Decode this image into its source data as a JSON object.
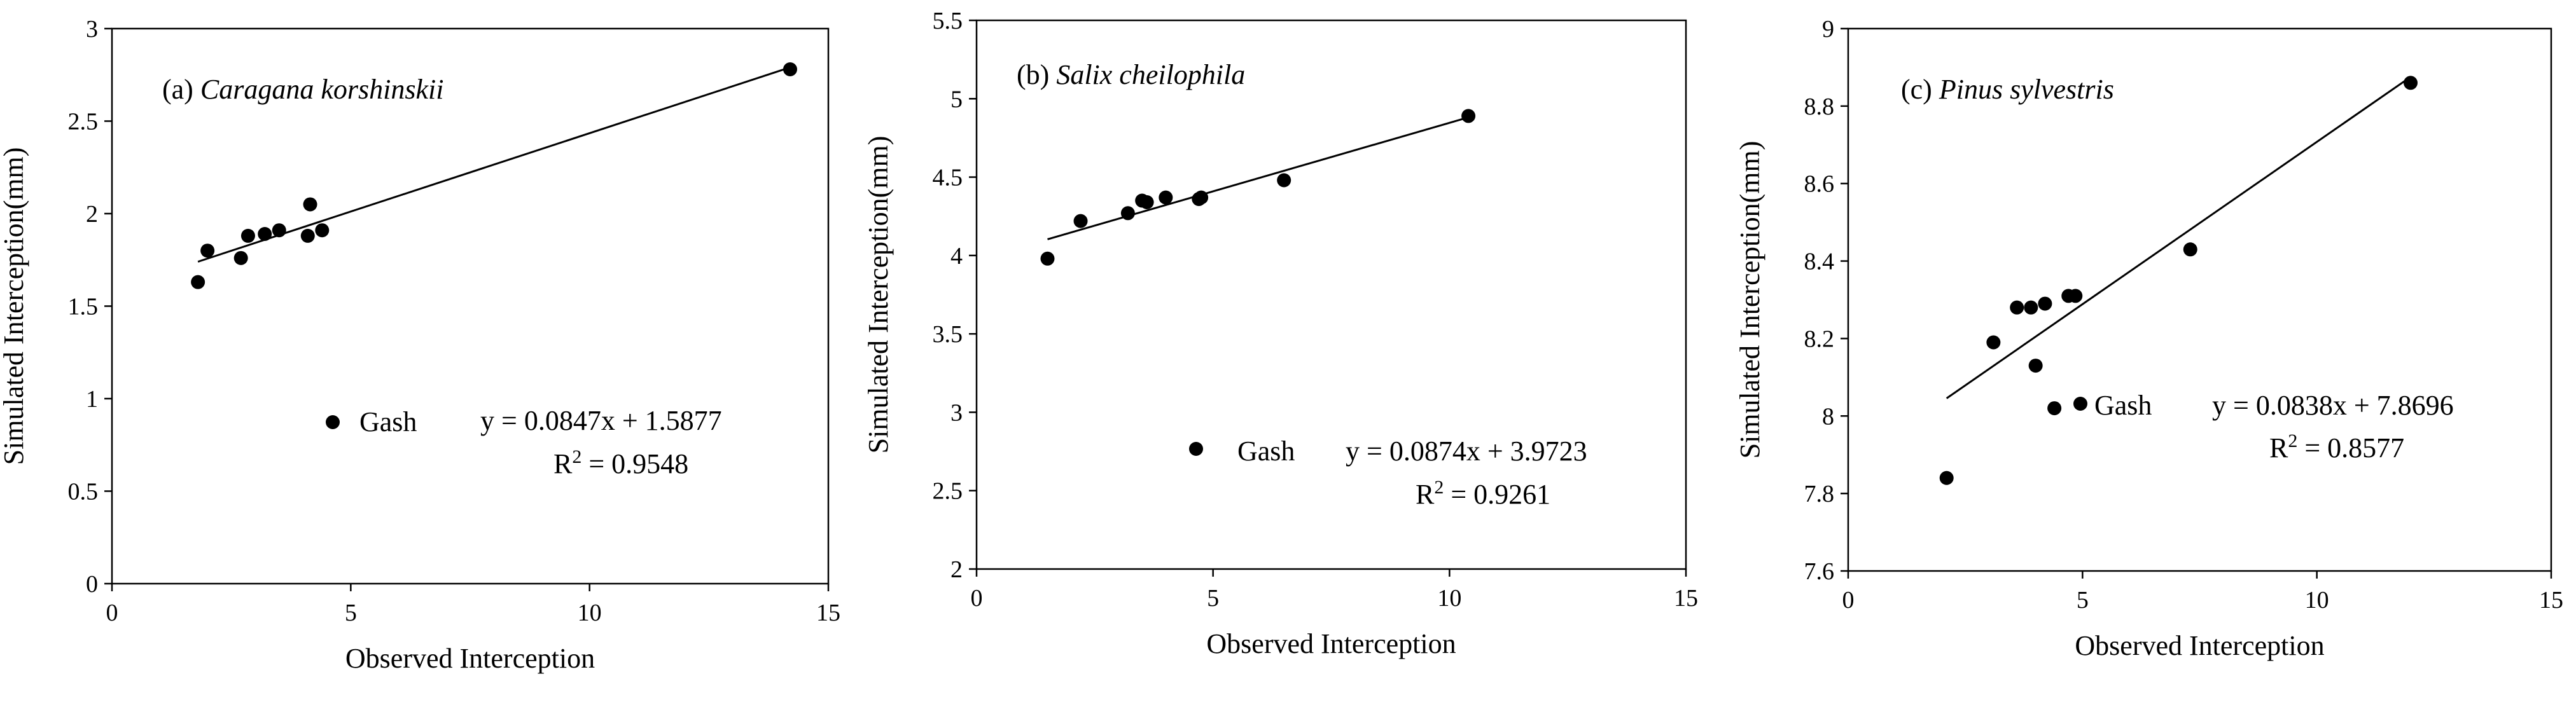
{
  "chart_data": [
    {
      "type": "scatter",
      "panel": "(a)",
      "species": "Caragana korshinskii",
      "xlabel": "Observed Interception",
      "ylabel": "Simulated Interception(mm)",
      "xlim": [
        0,
        15
      ],
      "ylim": [
        0,
        3
      ],
      "xticks": [
        "0",
        "5",
        "10",
        "15"
      ],
      "yticks": [
        "0",
        "0.5",
        "1",
        "1.5",
        "2",
        "2.5",
        "3"
      ],
      "series": [
        {
          "name": "Gash",
          "points": [
            [
              1.8,
              1.63
            ],
            [
              2.0,
              1.8
            ],
            [
              2.7,
              1.76
            ],
            [
              2.85,
              1.88
            ],
            [
              3.2,
              1.89
            ],
            [
              3.5,
              1.91
            ],
            [
              4.1,
              1.88
            ],
            [
              4.15,
              2.05
            ],
            [
              4.4,
              1.91
            ],
            [
              14.2,
              2.78
            ]
          ]
        }
      ],
      "fit": {
        "slope": 0.0847,
        "intercept": 1.5877,
        "x_range": [
          1.8,
          14.2
        ]
      },
      "legend": "Gash",
      "equation": "y = 0.0847x + 1.5877",
      "r2_label": "R",
      "r2_sup": "2",
      "r2_value": " = 0.9548"
    },
    {
      "type": "scatter",
      "panel": "(b)",
      "species": "Salix cheilophila",
      "xlabel": "Observed Interception",
      "ylabel": "Simulated Interception(mm)",
      "xlim": [
        0,
        15
      ],
      "ylim": [
        2,
        5.5
      ],
      "xticks": [
        "0",
        "5",
        "10",
        "15"
      ],
      "yticks": [
        "2",
        "2.5",
        "3",
        "3.5",
        "4",
        "4.5",
        "5",
        "5.5"
      ],
      "series": [
        {
          "name": "Gash",
          "points": [
            [
              1.5,
              3.98
            ],
            [
              2.2,
              4.22
            ],
            [
              3.2,
              4.27
            ],
            [
              3.5,
              4.35
            ],
            [
              3.6,
              4.34
            ],
            [
              4.0,
              4.37
            ],
            [
              4.7,
              4.36
            ],
            [
              4.75,
              4.37
            ],
            [
              6.5,
              4.48
            ],
            [
              10.4,
              4.89
            ]
          ]
        }
      ],
      "fit": {
        "slope": 0.0874,
        "intercept": 3.9723,
        "x_range": [
          1.5,
          10.4
        ]
      },
      "legend": "Gash",
      "equation": "y = 0.0874x + 3.9723",
      "r2_label": "R",
      "r2_sup": "2",
      "r2_value": " = 0.9261"
    },
    {
      "type": "scatter",
      "panel": "(c)",
      "species": "Pinus sylvestris",
      "xlabel": "Observed Interception",
      "ylabel": "Simulated Interception(mm)",
      "xlim": [
        0,
        15
      ],
      "ylim": [
        7.6,
        9
      ],
      "xticks": [
        "0",
        "5",
        "10",
        "15"
      ],
      "yticks": [
        "7.6",
        "7.8",
        "8",
        "8.2",
        "8.4",
        "8.6",
        "8.8",
        "9"
      ],
      "series": [
        {
          "name": "Gash",
          "points": [
            [
              2.1,
              7.84
            ],
            [
              3.1,
              8.19
            ],
            [
              3.6,
              8.28
            ],
            [
              3.9,
              8.28
            ],
            [
              4.0,
              8.13
            ],
            [
              4.2,
              8.29
            ],
            [
              4.4,
              8.02
            ],
            [
              4.7,
              8.31
            ],
            [
              4.85,
              8.31
            ],
            [
              7.3,
              8.43
            ],
            [
              12.0,
              8.86
            ]
          ]
        }
      ],
      "fit": {
        "slope": 0.0838,
        "intercept": 7.8696,
        "x_range": [
          2.1,
          12.0
        ]
      },
      "legend": "Gash",
      "equation": "y = 0.0838x + 7.8696",
      "r2_label": "R",
      "r2_sup": "2",
      "r2_value": " = 0.8577"
    }
  ]
}
